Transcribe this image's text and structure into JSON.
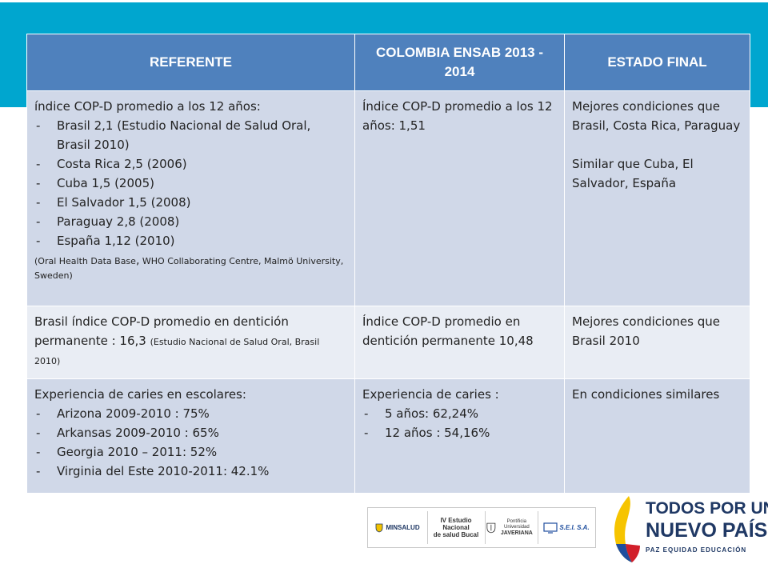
{
  "table": {
    "headers": [
      "REFERENTE",
      "COLOMBIA ENSAB 2013 - 2014",
      "ESTADO FINAL"
    ],
    "rows": [
      {
        "referente": {
          "intro": "índice COP-D promedio a los 12 años:",
          "items": [
            "Brasil 2,1 (Estudio Nacional de Salud Oral, Brasil 2010)",
            "Costa Rica 2,5 (2006)",
            "Cuba 1,5 (2005)",
            "El Salvador 1,5 (2008)",
            "Paraguay 2,8 (2008)",
            "España 1,12 (2010)"
          ],
          "source_a": "(Oral Health Data Base",
          "source_comma": ",",
          "source_b": " WHO Collaborating Centre, Malmö University, Sweden)"
        },
        "colombia": "Índice COP-D promedio a los 12 años: 1,51",
        "estado": [
          "Mejores condiciones que Brasil, Costa Rica, Paraguay",
          "Similar que Cuba, El Salvador, España"
        ]
      },
      {
        "referente": {
          "main": "Brasil índice COP-D promedio en dentición permanente  : 16,3 ",
          "source": "(Estudio Nacional de Salud Oral, Brasil 2010)"
        },
        "colombia": "Índice COP-D promedio en dentición permanente 10,48",
        "estado": "Mejores condiciones que Brasil 2010"
      },
      {
        "referente": {
          "intro": "Experiencia de caries en escolares:",
          "items": [
            "Arizona 2009-2010 : 75%",
            "Arkansas 2009-2010 : 65%",
            "Georgia  2010 – 2011: 52%",
            "Virginia del Este 2010-2011: 42.1%"
          ]
        },
        "colombia": {
          "intro": "Experiencia de caries :",
          "items": [
            "5 años: 62,24%",
            "12 años : 54,16%"
          ]
        },
        "estado": "En condiciones similares"
      }
    ]
  },
  "logos": {
    "minsalud": "MINSALUD",
    "estudio": [
      "IV Estudio Nacional",
      "de salud Bucal"
    ],
    "javeriana": [
      "Pontificia Universidad",
      "JAVERIANA"
    ],
    "sei": "S.E.I. S.A.",
    "brand": {
      "line1": "TODOS POR UN",
      "line2": "NUEVO PAÍS",
      "tagline": "PAZ  EQUIDAD  EDUCACIÓN"
    }
  },
  "colors": {
    "band": "#00a6cf",
    "header": "#4f81bd",
    "row_dark": "#d0d8e8",
    "row_light": "#e9edf4",
    "brand_text": "#1f3864"
  }
}
